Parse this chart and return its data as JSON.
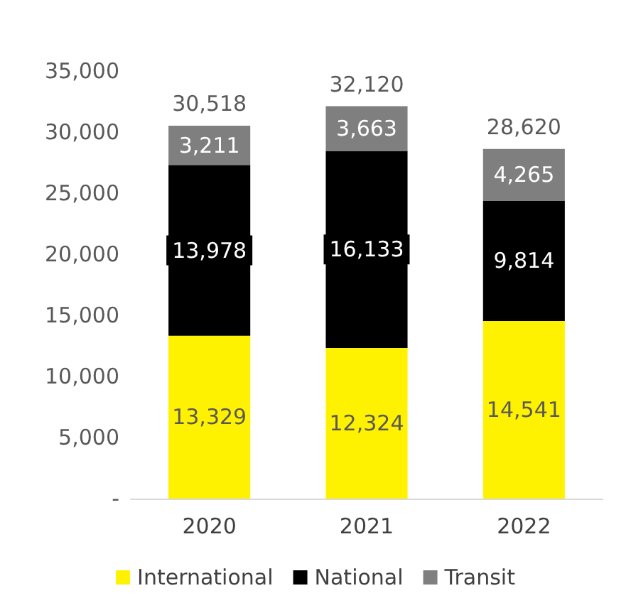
{
  "chart_data": {
    "type": "bar",
    "stacked": true,
    "categories": [
      "2020",
      "2021",
      "2022"
    ],
    "series": [
      {
        "name": "International",
        "color": "#fff200",
        "values": [
          13329,
          12324,
          14541
        ],
        "value_labels": [
          "13,329",
          "12,324",
          "14,541"
        ]
      },
      {
        "name": "National",
        "color": "#000000",
        "values": [
          13978,
          16133,
          9814
        ],
        "value_labels": [
          "13,978",
          "16,133",
          "9,814"
        ]
      },
      {
        "name": "Transit",
        "color": "#7f7f7f",
        "values": [
          3211,
          3663,
          4265
        ],
        "value_labels": [
          "3,211",
          "3,663",
          "4,265"
        ]
      }
    ],
    "totals": [
      "30,518",
      "32,120",
      "28,620"
    ],
    "ylim": [
      0,
      35000
    ],
    "yticks": [
      {
        "value": 0,
        "label": "-"
      },
      {
        "value": 5000,
        "label": "5,000"
      },
      {
        "value": 10000,
        "label": "10,000"
      },
      {
        "value": 15000,
        "label": "15,000"
      },
      {
        "value": 20000,
        "label": "20,000"
      },
      {
        "value": 25000,
        "label": "25,000"
      },
      {
        "value": 30000,
        "label": "30,000"
      },
      {
        "value": 35000,
        "label": "35,000"
      }
    ],
    "grid": false,
    "legend": "bottom"
  }
}
